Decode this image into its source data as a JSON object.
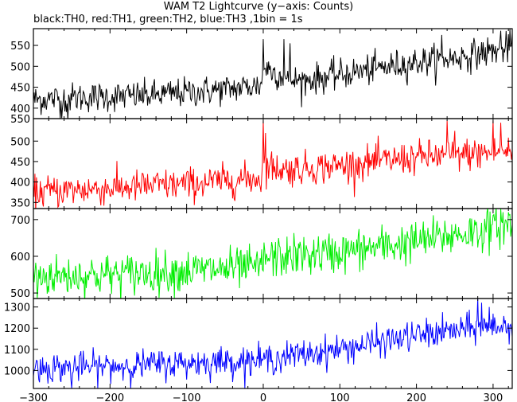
{
  "chart_data": {
    "type": "line",
    "title": "WAM T2 Lightcurve (y−axis: Counts)",
    "subtitle": "black:TH0, red:TH1, green:TH2, blue:TH3 ,1bin = 1s",
    "xlim": [
      -300,
      325
    ],
    "x_ticks": [
      -300,
      -200,
      -100,
      0,
      100,
      200,
      300
    ],
    "x_step": 1,
    "grid": false,
    "panels": [
      {
        "name": "TH0",
        "color": "#000000",
        "ylim": [
          375,
          590
        ],
        "y_ticks": [
          400,
          450,
          500,
          550
        ],
        "trend": [
          [
            -300,
            420
          ],
          [
            -250,
            425
          ],
          [
            -150,
            430
          ],
          [
            -50,
            445
          ],
          [
            -2,
            455
          ],
          [
            0,
            500
          ],
          [
            10,
            490
          ],
          [
            30,
            470
          ],
          [
            50,
            465
          ],
          [
            100,
            480
          ],
          [
            200,
            510
          ],
          [
            250,
            520
          ],
          [
            325,
            545
          ]
        ],
        "noise_sd": 18,
        "spikes": [
          [
            -265,
            375
          ],
          [
            -255,
            370
          ],
          [
            0,
            565
          ],
          [
            27,
            565
          ],
          [
            35,
            555
          ],
          [
            233,
            575
          ],
          [
            310,
            585
          ],
          [
            322,
            590
          ]
        ]
      },
      {
        "name": "TH1",
        "color": "#ff0000",
        "ylim": [
          335,
          555
        ],
        "y_ticks": [
          350,
          400,
          450,
          500
        ],
        "top_label": "550",
        "trend": [
          [
            -300,
            375
          ],
          [
            -200,
            385
          ],
          [
            -100,
            395
          ],
          [
            -2,
            410
          ],
          [
            0,
            440
          ],
          [
            30,
            430
          ],
          [
            100,
            440
          ],
          [
            200,
            460
          ],
          [
            325,
            475
          ]
        ],
        "noise_sd": 20,
        "spikes": [
          [
            0,
            550
          ],
          [
            3,
            520
          ],
          [
            240,
            550
          ],
          [
            250,
            525
          ],
          [
            300,
            550
          ],
          [
            310,
            545
          ]
        ]
      },
      {
        "name": "TH2",
        "color": "#00ee00",
        "ylim": [
          485,
          730
        ],
        "y_ticks": [
          500,
          600,
          700
        ],
        "trend": [
          [
            -300,
            545
          ],
          [
            -200,
            550
          ],
          [
            -100,
            560
          ],
          [
            -2,
            570
          ],
          [
            0,
            595
          ],
          [
            100,
            610
          ],
          [
            200,
            640
          ],
          [
            325,
            685
          ]
        ],
        "noise_sd": 28,
        "spikes": [
          [
            -295,
            485
          ],
          [
            310,
            730
          ],
          [
            320,
            720
          ]
        ]
      },
      {
        "name": "TH3",
        "color": "#0000ff",
        "ylim": [
          915,
          1340
        ],
        "y_ticks": [
          1000,
          1100,
          1200,
          1300
        ],
        "trend": [
          [
            -300,
            1010
          ],
          [
            -200,
            1020
          ],
          [
            -100,
            1035
          ],
          [
            0,
            1050
          ],
          [
            100,
            1100
          ],
          [
            200,
            1165
          ],
          [
            300,
            1210
          ],
          [
            325,
            1210
          ]
        ],
        "noise_sd": 35,
        "spikes": [
          [
            280,
            1340
          ],
          [
            285,
            1320
          ],
          [
            295,
            1300
          ],
          [
            -250,
            915
          ]
        ]
      }
    ]
  }
}
